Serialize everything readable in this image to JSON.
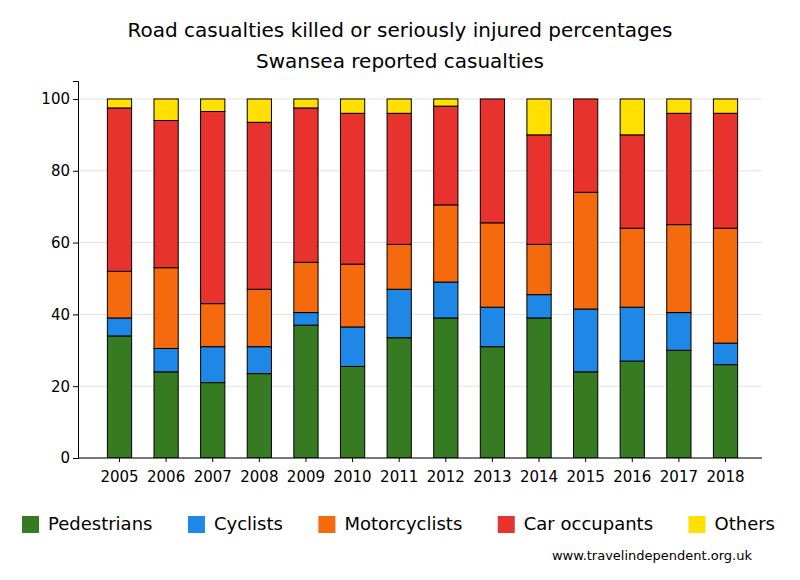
{
  "chart_data": {
    "type": "bar",
    "stacked": true,
    "grid": true,
    "legend": "bottom",
    "title": "Road casualties killed or seriously injured percentages",
    "subtitle": "Swansea reported casualties",
    "annotations": [
      "www.travelindependent.org.uk"
    ],
    "categories": [
      "2005",
      "2006",
      "2007",
      "2008",
      "2009",
      "2010",
      "2011",
      "2012",
      "2013",
      "2014",
      "2015",
      "2016",
      "2017",
      "2018"
    ],
    "series": [
      {
        "name": "Pedestrians",
        "color": "#367a21",
        "values": [
          34,
          24,
          21,
          23.5,
          37,
          25.5,
          33.5,
          39,
          31,
          39,
          24,
          27,
          30,
          26
        ]
      },
      {
        "name": "Cyclists",
        "color": "#1f87e6",
        "values": [
          5,
          6.5,
          10,
          7.5,
          3.5,
          11,
          13.5,
          10,
          11,
          6.5,
          17.5,
          15,
          10.5,
          6
        ]
      },
      {
        "name": "Motorcyclists",
        "color": "#f56a0c",
        "values": [
          13,
          22.5,
          12,
          16,
          14,
          17.5,
          12.5,
          21.5,
          23.5,
          14,
          32.5,
          22,
          24.5,
          32
        ]
      },
      {
        "name": "Car occupants",
        "color": "#e8322e",
        "values": [
          45.5,
          41,
          53.5,
          46.5,
          43,
          42,
          36.5,
          27.5,
          34.5,
          30.5,
          26,
          26,
          31,
          32
        ]
      },
      {
        "name": "Others",
        "color": "#ffe000",
        "values": [
          2.5,
          6,
          3.5,
          6.5,
          2.5,
          4,
          4,
          2,
          0,
          10,
          0,
          10,
          4,
          4
        ]
      }
    ],
    "ylim": [
      0,
      105
    ],
    "yticks": [
      0,
      20,
      40,
      60,
      80,
      100
    ]
  }
}
